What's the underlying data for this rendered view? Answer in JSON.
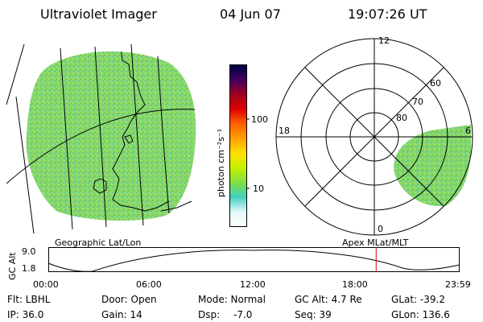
{
  "header": {
    "instrument": "Ultraviolet Imager",
    "date": "04 Jun 07",
    "time": "19:07:26 UT"
  },
  "colorbar": {
    "unit_label": "photon cm⁻²s⁻¹",
    "ticks": [
      "100",
      "10"
    ],
    "stops": [
      "#000040",
      "#400060",
      "#a00020",
      "#e00000",
      "#ff6000",
      "#ffa000",
      "#ffe000",
      "#c8f000",
      "#80e040",
      "#40d0c0",
      "#e0f8f8",
      "#ffffff"
    ]
  },
  "left_panel": {
    "caption": "Geographic Lat/Lon",
    "fill_color": "#80d060"
  },
  "right_panel": {
    "caption": "Apex MLat/MLT",
    "mlt_labels": {
      "top": "12",
      "left": "18",
      "right": "6",
      "bottom": "0"
    },
    "lat_labels": [
      "80",
      "70",
      "60"
    ]
  },
  "timeline": {
    "y_label": "GC Alt",
    "y_ticks": [
      "9.0",
      "1.8"
    ],
    "x_ticks": [
      "00:00",
      "06:00",
      "12:00",
      "18:00",
      "23:59"
    ],
    "marker_color": "#e00000",
    "current_time_fraction": 0.797
  },
  "status": {
    "flt": "Flt: LBHL",
    "door": "Door: Open",
    "mode": "Mode: Normal",
    "gc_alt": "GC Alt: 4.7 Re",
    "glat": "GLat: -39.2",
    "ip": "IP: 36.0",
    "gain": "Gain: 14",
    "dsp_label": "Dsp:",
    "dsp_value": "-7.0",
    "seq": "Seq: 39",
    "glon": "GLon: 136.6"
  }
}
